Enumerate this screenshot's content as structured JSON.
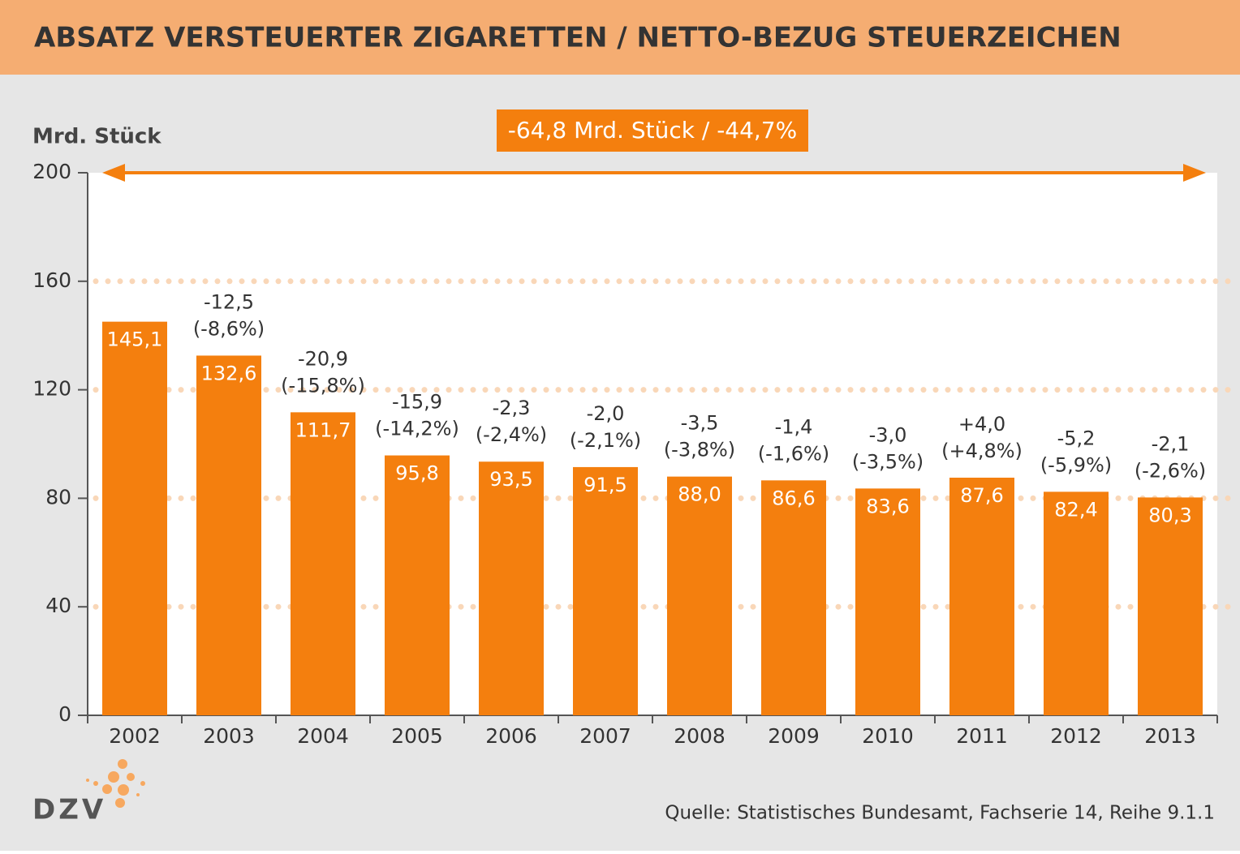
{
  "chart_data": {
    "type": "bar",
    "title": "ABSATZ VERSTEUERTER ZIGARETTEN / NETTO-BEZUG STEUERZEICHEN",
    "y_label": "Mrd. Stück",
    "annotation": "-64,8 Mrd. Stück / -44,7%",
    "source": "Quelle: Statistisches Bundesamt, Fachserie 14, Reihe 9.1.1",
    "logo": "DZV",
    "categories": [
      "2002",
      "2003",
      "2004",
      "2005",
      "2006",
      "2007",
      "2008",
      "2009",
      "2010",
      "2011",
      "2012",
      "2013"
    ],
    "values": [
      145.1,
      132.6,
      111.7,
      95.8,
      93.5,
      91.5,
      88.0,
      86.6,
      83.6,
      87.6,
      82.4,
      80.3
    ],
    "value_labels": [
      "145,1",
      "132,6",
      "111,7",
      "95,8",
      "93,5",
      "91,5",
      "88,0",
      "86,6",
      "83,6",
      "87,6",
      "82,4",
      "80,3"
    ],
    "change_labels": [
      null,
      "-12,5",
      "-20,9",
      "-15,9",
      "-2,3",
      "-2,0",
      "-3,5",
      "-1,4",
      "-3,0",
      "+4,0",
      "-5,2",
      "-2,1"
    ],
    "change_pct_labels": [
      null,
      "(-8,6%)",
      "(-15,8%)",
      "(-14,2%)",
      "(-2,4%)",
      "(-2,1%)",
      "(-3,8%)",
      "(-1,6%)",
      "(-3,5%)",
      "(+4,8%)",
      "(-5,9%)",
      "(-2,6%)"
    ],
    "color": "#f47f0e",
    "ylim": [
      0,
      200
    ],
    "yticks": [
      0,
      40,
      80,
      120,
      160,
      200
    ],
    "grid": true
  }
}
